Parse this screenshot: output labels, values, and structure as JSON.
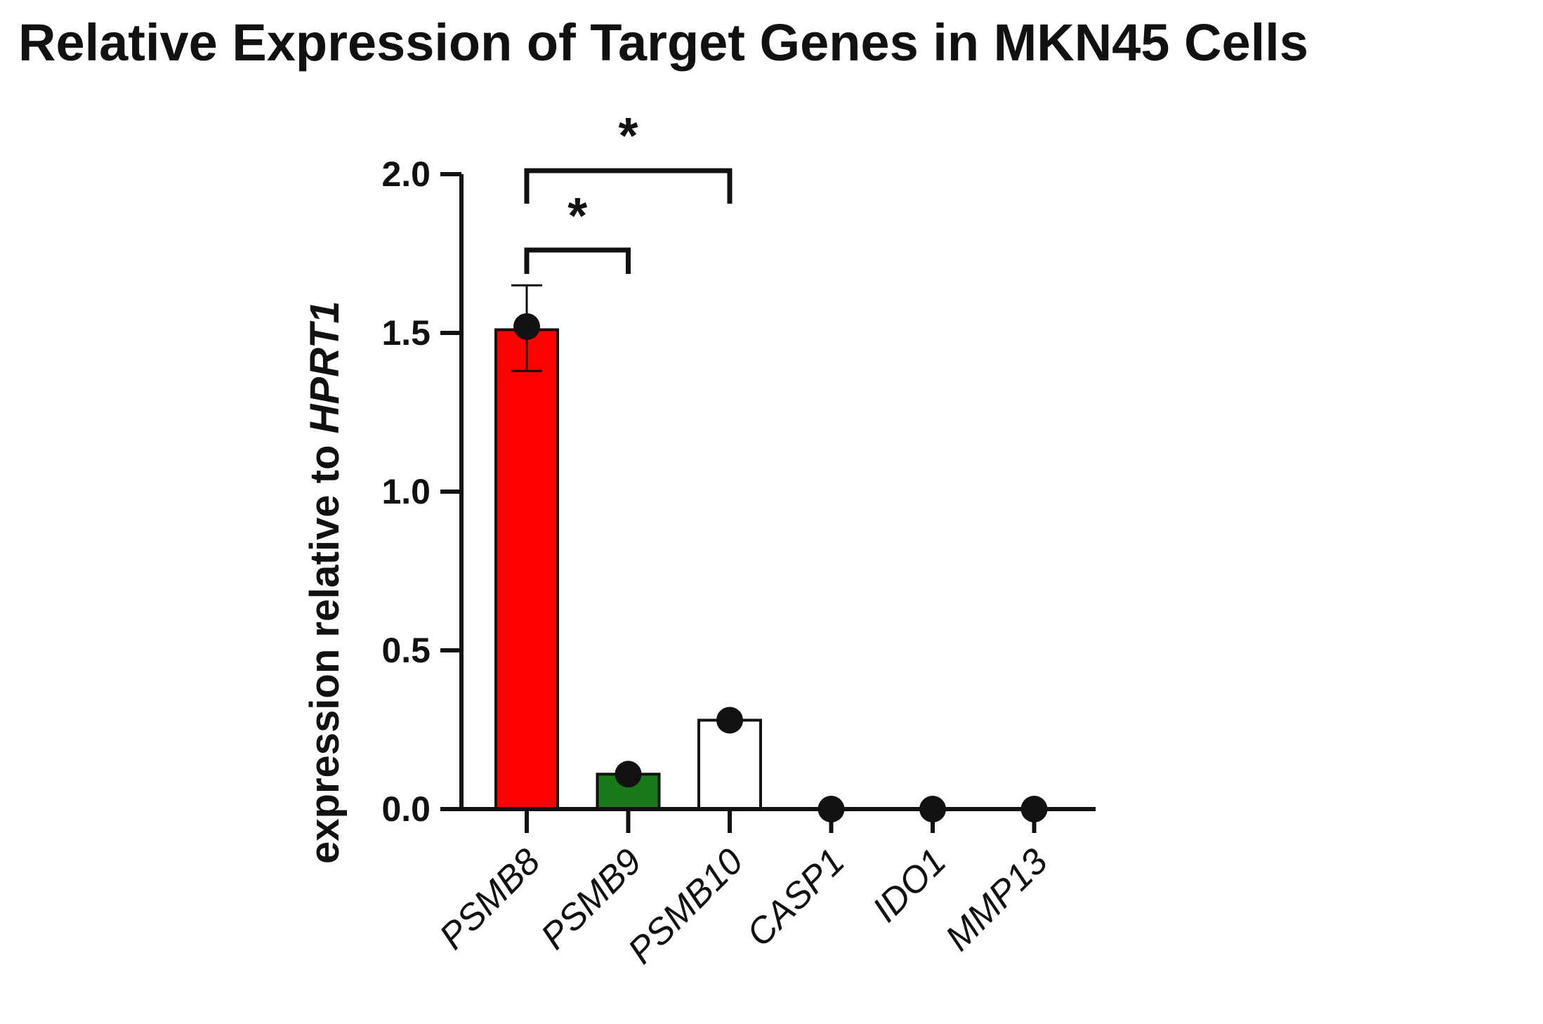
{
  "chart_data": {
    "type": "bar",
    "title": "Relative Expression of Target Genes in MKN45 Cells",
    "xlabel": "",
    "ylabel": "expression relative to",
    "ylabel_gene": "HPRT1",
    "categories": [
      "PSMB8",
      "PSMB9",
      "PSMB10",
      "CASP1",
      "IDO1",
      "MMP13"
    ],
    "values": [
      1.51,
      0.11,
      0.28,
      0.0,
      0.0,
      0.0
    ],
    "points": [
      1.52,
      0.11,
      0.28,
      0.0,
      0.0,
      0.0
    ],
    "error_upper": [
      1.65,
      0.12,
      0.3,
      0.0,
      0.0,
      0.0
    ],
    "error_lower": [
      1.38,
      0.1,
      0.26,
      0.0,
      0.0,
      0.0
    ],
    "bar_colors": [
      "#ff0000",
      "#1a7a1a",
      "#ffffff",
      "#ffffff",
      "#ffffff",
      "#ffffff"
    ],
    "ylim": [
      0,
      2.0
    ],
    "yticks": [
      "0.0",
      "0.5",
      "1.0",
      "1.5",
      "2.0"
    ],
    "significance": [
      {
        "from": "PSMB8",
        "to": "PSMB9",
        "label": "*"
      },
      {
        "from": "PSMB8",
        "to": "PSMB10",
        "label": "*"
      }
    ],
    "grid": false,
    "legend": "none"
  }
}
